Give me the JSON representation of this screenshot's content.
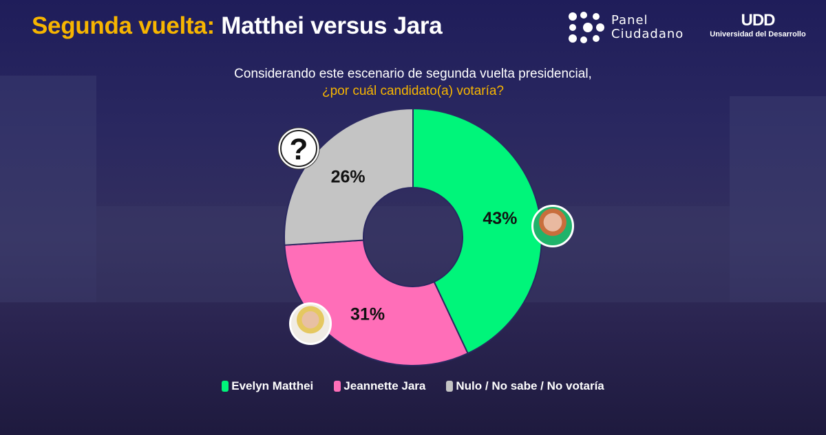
{
  "header": {
    "title_accent": "Segunda vuelta:",
    "title_rest": "Matthei versus Jara"
  },
  "logos": {
    "panel_line1": "Panel",
    "panel_line2": "Ciudadano",
    "udd_mark": "UDD",
    "udd_name": "Universidad del Desarrollo"
  },
  "chart_data": {
    "type": "pie",
    "donut": true,
    "title": "Considerando este escenario de segunda vuelta presidencial,",
    "subtitle": "¿por cuál candidato(a) votaría?",
    "categories": [
      "Evelyn Matthei",
      "Jeannette Jara",
      "Nulo / No sabe / No votaría"
    ],
    "values": [
      43,
      31,
      26
    ],
    "labels": [
      "43%",
      "31%",
      "26%"
    ],
    "colors": [
      "#00f57a",
      "#ff6eb8",
      "#c4c4c4"
    ],
    "legend_position": "bottom"
  }
}
